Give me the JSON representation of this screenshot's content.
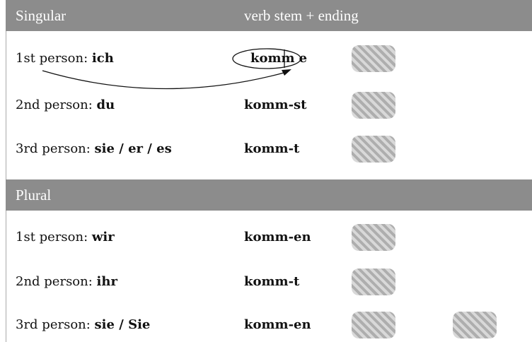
{
  "sections": [
    {
      "title": "Singular",
      "column_title": "verb stem + ending",
      "rows": [
        {
          "person": "1st person:",
          "pronoun": "ich",
          "stem": "komm",
          "ending": "e"
        },
        {
          "person": "2nd person:",
          "pronoun": "du",
          "stem": "komm-",
          "ending": "st"
        },
        {
          "person": "3rd person:",
          "pronoun": "sie / er / es",
          "stem": "komm-",
          "ending": "t"
        }
      ]
    },
    {
      "title": "Plural",
      "rows": [
        {
          "person": "1st person:",
          "pronoun": "wir",
          "stem": "komm-",
          "ending": "en"
        },
        {
          "person": "2nd person:",
          "pronoun": "ihr",
          "stem": "komm-",
          "ending": "t"
        },
        {
          "person": "3rd person:",
          "pronoun": "sie / Sie",
          "stem": "komm-",
          "ending": "en"
        }
      ]
    }
  ]
}
